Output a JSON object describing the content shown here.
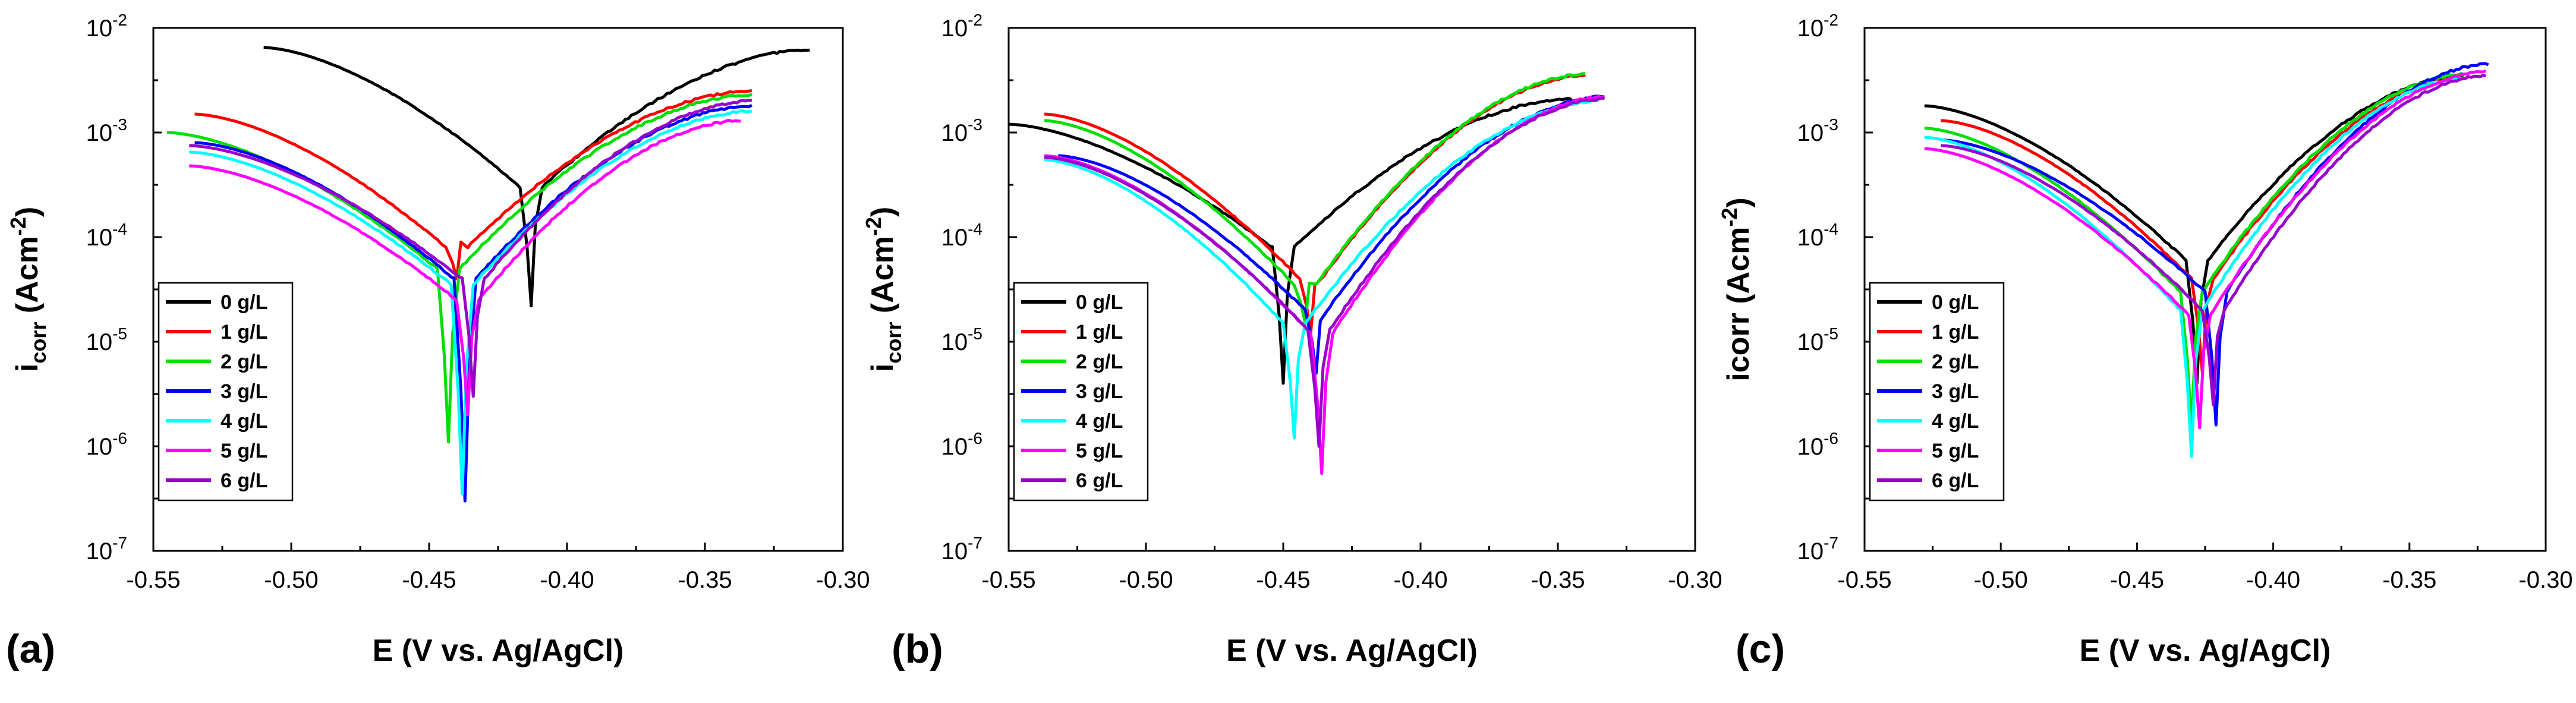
{
  "chart_data": [
    {
      "panel_label": "(a)",
      "type": "line",
      "yscale": "log",
      "xlabel": "E (V vs. Ag/AgCl)",
      "ylabel": "icorr (Acm-2)",
      "ylabel_main": "i",
      "ylabel_sub": "corr",
      "ylabel_unit": " (Acm",
      "ylabel_exp": "-2",
      "ylabel_close": ")",
      "xlim": [
        -0.55,
        -0.3
      ],
      "ylim": [
        1e-07,
        0.01
      ],
      "xticks": [
        "-0.55",
        "-0.50",
        "-0.45",
        "-0.40",
        "-0.35",
        "-0.30"
      ],
      "yticks": [
        {
          "base": "10",
          "exp": "-7"
        },
        {
          "base": "10",
          "exp": "-6"
        },
        {
          "base": "10",
          "exp": "-5"
        },
        {
          "base": "10",
          "exp": "-4"
        },
        {
          "base": "10",
          "exp": "-3"
        },
        {
          "base": "10",
          "exp": "-2"
        }
      ],
      "legend_position": "bottom-left",
      "series": [
        {
          "name": "0 g/L",
          "color": "#000000",
          "e_start": -0.51,
          "i_start": 0.0065,
          "e_corr": -0.413,
          "i_min": 2.2e-05,
          "i_corr": 0.0003,
          "e_end": -0.312,
          "i_end": 0.0062
        },
        {
          "name": "1 g/L",
          "color": "#ff0000",
          "e_start": -0.535,
          "i_start": 0.0015,
          "e_corr": -0.44,
          "i_min": 4e-05,
          "i_corr": 8e-05,
          "e_end": -0.333,
          "i_end": 0.0025
        },
        {
          "name": "2 g/L",
          "color": "#00e000",
          "e_start": -0.545,
          "i_start": 0.001,
          "e_corr": -0.443,
          "i_min": 1.1e-06,
          "i_corr": 5e-05,
          "e_end": -0.333,
          "i_end": 0.0023
        },
        {
          "name": "3 g/L",
          "color": "#0000ff",
          "e_start": -0.535,
          "i_start": 0.0008,
          "e_corr": -0.437,
          "i_min": 3e-07,
          "i_corr": 4e-05,
          "e_end": -0.333,
          "i_end": 0.0018
        },
        {
          "name": "4 g/L",
          "color": "#00ffff",
          "e_start": -0.537,
          "i_start": 0.00065,
          "e_corr": -0.438,
          "i_min": 3.5e-07,
          "i_corr": 3.5e-05,
          "e_end": -0.333,
          "i_end": 0.0016
        },
        {
          "name": "5 g/L",
          "color": "#ff00ff",
          "e_start": -0.537,
          "i_start": 0.00048,
          "e_corr": -0.436,
          "i_min": 2e-06,
          "i_corr": 2.5e-05,
          "e_end": -0.337,
          "i_end": 0.0013
        },
        {
          "name": "6 g/L",
          "color": "#9900cc",
          "e_start": -0.537,
          "i_start": 0.00075,
          "e_corr": -0.434,
          "i_min": 3e-06,
          "i_corr": 4e-05,
          "e_end": -0.333,
          "i_end": 0.002
        }
      ]
    },
    {
      "panel_label": "(b)",
      "type": "line",
      "yscale": "log",
      "xlabel": "E (V vs. Ag/AgCl)",
      "ylabel": "icorr (Acm-2)",
      "ylabel_main": "i",
      "ylabel_sub": "corr",
      "ylabel_unit": " (Acm",
      "ylabel_exp": "-2",
      "ylabel_close": ")",
      "xlim": [
        -0.55,
        -0.3
      ],
      "ylim": [
        1e-07,
        0.01
      ],
      "xticks": [
        "-0.55",
        "-0.50",
        "-0.45",
        "-0.40",
        "-0.35",
        "-0.30"
      ],
      "yticks": [
        {
          "base": "10",
          "exp": "-7"
        },
        {
          "base": "10",
          "exp": "-6"
        },
        {
          "base": "10",
          "exp": "-5"
        },
        {
          "base": "10",
          "exp": "-4"
        },
        {
          "base": "10",
          "exp": "-3"
        },
        {
          "base": "10",
          "exp": "-2"
        }
      ],
      "legend_position": "bottom-left",
      "series": [
        {
          "name": "0 g/L",
          "color": "#000000",
          "e_start": -0.55,
          "i_start": 0.0012,
          "e_corr": -0.45,
          "i_min": 4e-06,
          "i_corr": 8e-05,
          "e_end": -0.345,
          "i_end": 0.0021
        },
        {
          "name": "1 g/L",
          "color": "#ff0000",
          "e_start": -0.537,
          "i_start": 0.0015,
          "e_corr": -0.44,
          "i_min": 1.2e-05,
          "i_corr": 4e-05,
          "e_end": -0.34,
          "i_end": 0.0035
        },
        {
          "name": "2 g/L",
          "color": "#00e000",
          "e_start": -0.537,
          "i_start": 0.0013,
          "e_corr": -0.442,
          "i_min": 1.5e-05,
          "i_corr": 3.5e-05,
          "e_end": -0.34,
          "i_end": 0.0036
        },
        {
          "name": "3 g/L",
          "color": "#0000ff",
          "e_start": -0.532,
          "i_start": 0.0006,
          "e_corr": -0.438,
          "i_min": 5e-06,
          "i_corr": 2e-05,
          "e_end": -0.333,
          "i_end": 0.0022
        },
        {
          "name": "4 g/L",
          "color": "#00ffff",
          "e_start": -0.537,
          "i_start": 0.00055,
          "e_corr": -0.446,
          "i_min": 1.2e-06,
          "i_corr": 1.5e-05,
          "e_end": -0.335,
          "i_end": 0.002
        },
        {
          "name": "5 g/L",
          "color": "#ff00ff",
          "e_start": -0.537,
          "i_start": 0.0006,
          "e_corr": -0.436,
          "i_min": 5.5e-07,
          "i_corr": 1.2e-05,
          "e_end": -0.333,
          "i_end": 0.0022
        },
        {
          "name": "6 g/L",
          "color": "#9900cc",
          "e_start": -0.537,
          "i_start": 0.00058,
          "e_corr": -0.437,
          "i_min": 1e-06,
          "i_corr": 1.3e-05,
          "e_end": -0.333,
          "i_end": 0.0021
        }
      ]
    },
    {
      "panel_label": "(c)",
      "type": "line",
      "yscale": "log",
      "xlabel": "E (V vs. Ag/AgCl)",
      "ylabel": "icorr (Acm-2)",
      "ylabel_main": "icorr",
      "ylabel_sub": "",
      "ylabel_unit": " (Acm",
      "ylabel_exp": "-2",
      "ylabel_close": ")",
      "xlim": [
        -0.55,
        -0.3
      ],
      "ylim": [
        1e-07,
        0.01
      ],
      "xticks": [
        "-0.55",
        "-0.50",
        "-0.45",
        "-0.40",
        "-0.35",
        "-0.30"
      ],
      "yticks": [
        {
          "base": "10",
          "exp": "-7"
        },
        {
          "base": "10",
          "exp": "-6"
        },
        {
          "base": "10",
          "exp": "-5"
        },
        {
          "base": "10",
          "exp": "-4"
        },
        {
          "base": "10",
          "exp": "-3"
        },
        {
          "base": "10",
          "exp": "-2"
        }
      ],
      "legend_position": "bottom-left",
      "series": [
        {
          "name": "0 g/L",
          "color": "#000000",
          "e_start": -0.528,
          "i_start": 0.0018,
          "e_corr": -0.428,
          "i_min": 4e-06,
          "i_corr": 6e-05,
          "e_end": -0.33,
          "i_end": 0.0035
        },
        {
          "name": "1 g/L",
          "color": "#ff0000",
          "e_start": -0.522,
          "i_start": 0.0013,
          "e_corr": -0.426,
          "i_min": 5e-06,
          "i_corr": 4e-05,
          "e_end": -0.33,
          "i_end": 0.0033
        },
        {
          "name": "2 g/L",
          "color": "#00e000",
          "e_start": -0.528,
          "i_start": 0.0011,
          "e_corr": -0.43,
          "i_min": 1.5e-06,
          "i_corr": 3e-05,
          "e_end": -0.33,
          "i_end": 0.0036
        },
        {
          "name": "3 g/L",
          "color": "#0000ff",
          "e_start": -0.522,
          "i_start": 0.00085,
          "e_corr": -0.421,
          "i_min": 1.6e-06,
          "i_corr": 3e-05,
          "e_end": -0.321,
          "i_end": 0.0045
        },
        {
          "name": "4 g/L",
          "color": "#00ffff",
          "e_start": -0.528,
          "i_start": 0.0009,
          "e_corr": -0.43,
          "i_min": 8e-07,
          "i_corr": 2e-05,
          "e_end": -0.33,
          "i_end": 0.0033
        },
        {
          "name": "5 g/L",
          "color": "#ff00ff",
          "e_start": -0.528,
          "i_start": 0.0007,
          "e_corr": -0.427,
          "i_min": 1.5e-06,
          "i_corr": 1.8e-05,
          "e_end": -0.322,
          "i_end": 0.0038
        },
        {
          "name": "6 g/L",
          "color": "#9900cc",
          "e_start": -0.522,
          "i_start": 0.00075,
          "e_corr": -0.422,
          "i_min": 2.5e-06,
          "i_corr": 2e-05,
          "e_end": -0.322,
          "i_end": 0.0035
        }
      ]
    }
  ]
}
